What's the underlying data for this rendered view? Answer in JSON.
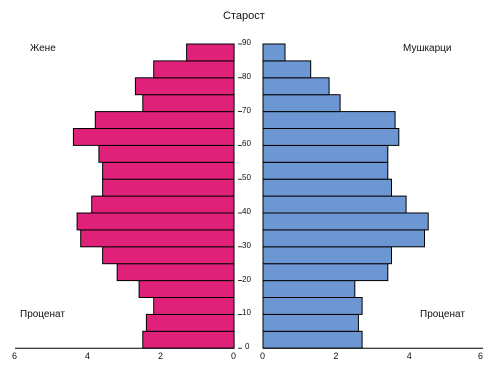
{
  "chart_data": {
    "type": "bar",
    "orientation": "horizontal-pyramid",
    "title": "Старост",
    "age_groups": [
      0,
      5,
      10,
      15,
      20,
      25,
      30,
      35,
      40,
      45,
      50,
      55,
      60,
      65,
      70,
      75,
      80,
      85
    ],
    "age_tick_labels": [
      "0",
      "10",
      "20",
      "30",
      "40",
      "50",
      "60",
      "70",
      "80",
      "90"
    ],
    "series": [
      {
        "name": "Жене",
        "color": "#e0217a",
        "values": [
          2.5,
          2.4,
          2.2,
          2.6,
          3.2,
          3.6,
          4.2,
          4.3,
          3.9,
          3.6,
          3.6,
          3.7,
          4.4,
          3.8,
          2.5,
          2.7,
          2.2,
          1.3
        ]
      },
      {
        "name": "Мушкарци",
        "color": "#6d97d2",
        "values": [
          2.7,
          2.6,
          2.7,
          2.5,
          3.4,
          3.5,
          4.4,
          4.5,
          3.9,
          3.5,
          3.4,
          3.4,
          3.7,
          3.6,
          2.1,
          1.8,
          1.3,
          0.6
        ]
      }
    ],
    "xlim_left": [
      0,
      6
    ],
    "xlim_right": [
      0,
      6
    ],
    "left_axis_ticks": [
      "6",
      "4",
      "2",
      "0"
    ],
    "right_axis_ticks": [
      "0",
      "2",
      "4",
      "6"
    ],
    "bottom_left_label": "Проценат",
    "bottom_right_label": "Проценат"
  }
}
